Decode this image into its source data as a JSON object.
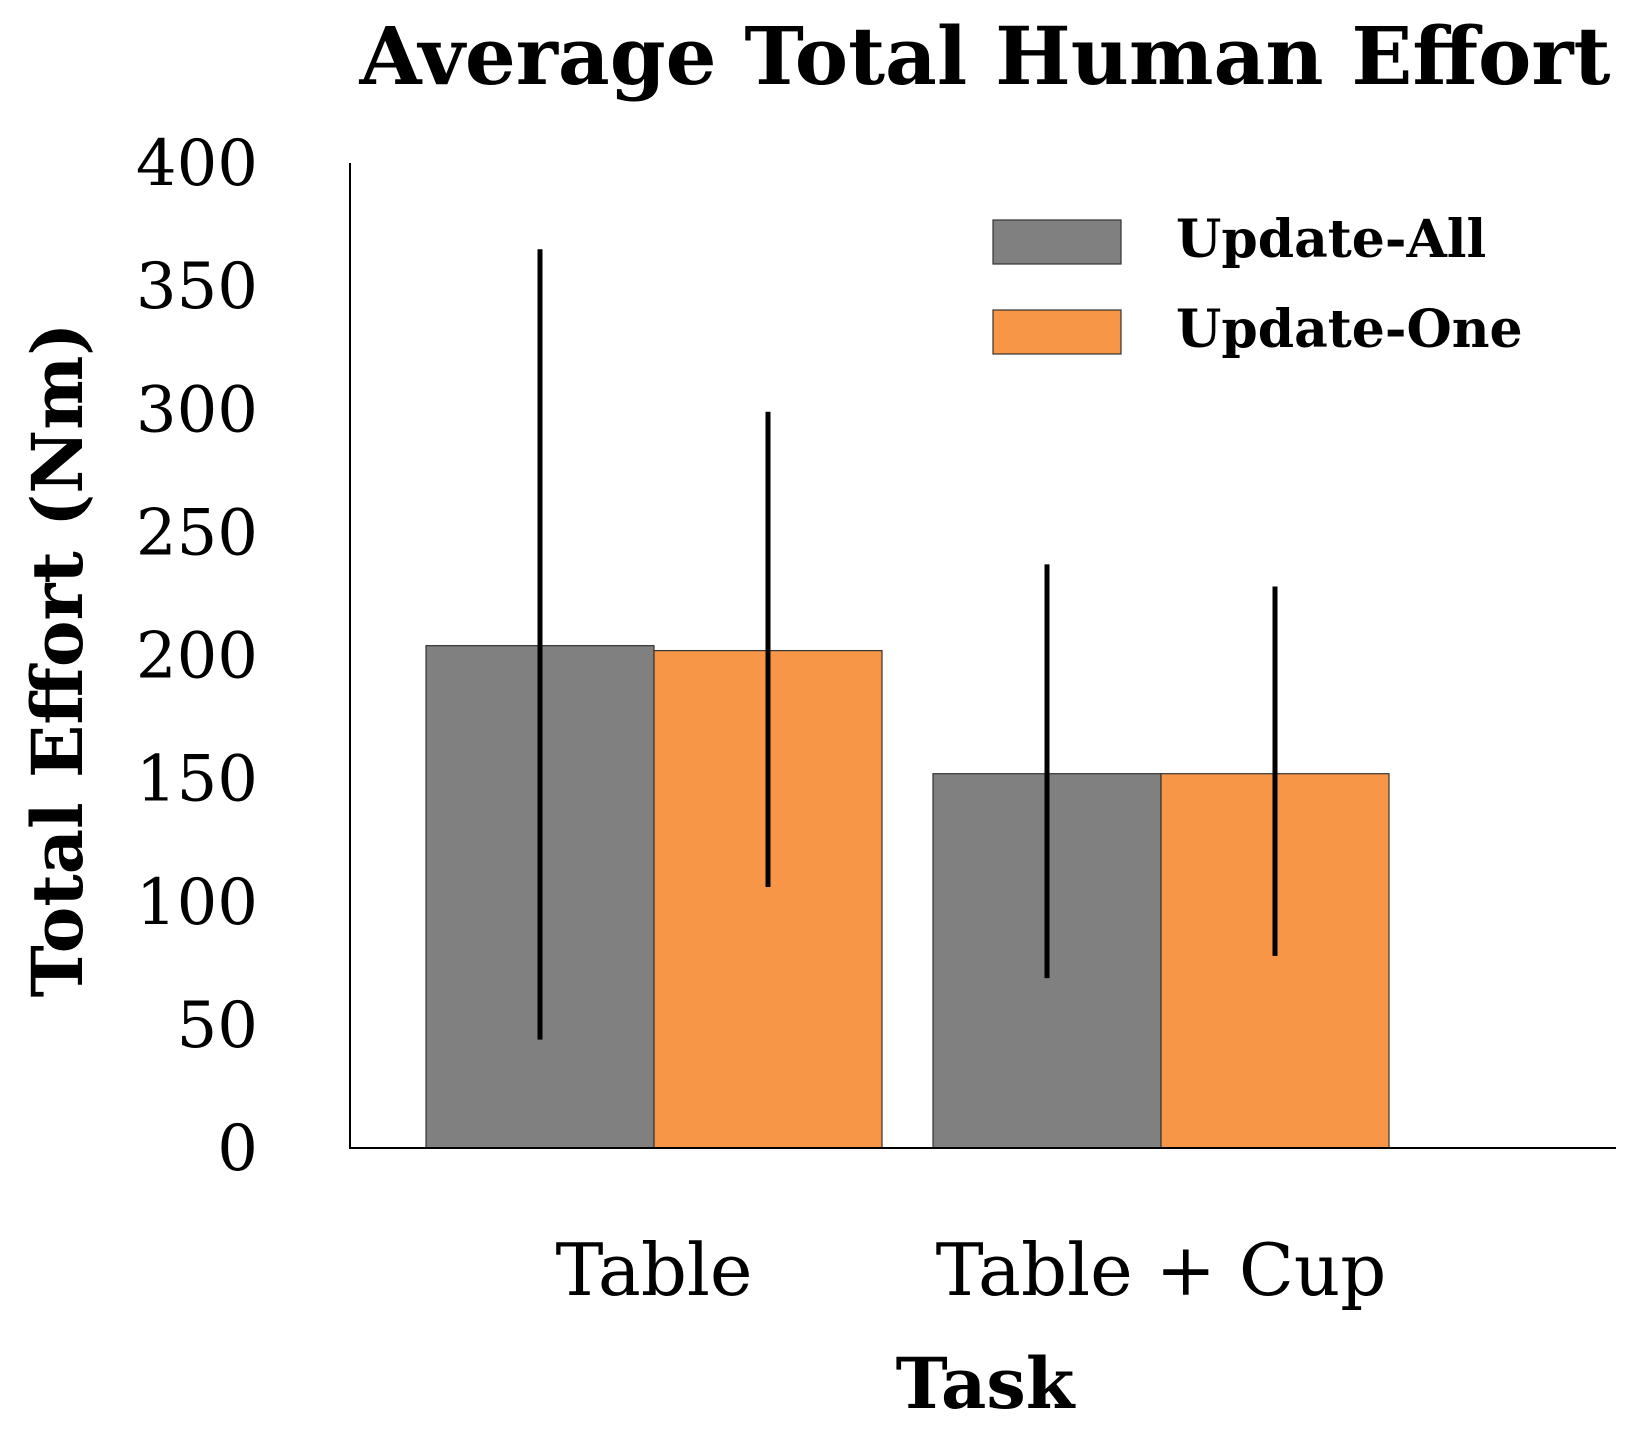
{
  "chart_data": {
    "type": "bar",
    "title": "Average Total Human Effort",
    "xlabel": "Task",
    "ylabel": "Total Effort (Nm)",
    "categories": [
      "Table",
      "Table + Cup"
    ],
    "series": [
      {
        "name": "Update-All",
        "color": "#808080",
        "values": [
          204,
          152
        ],
        "error_low": [
          44,
          69
        ],
        "error_high": [
          365,
          237
        ]
      },
      {
        "name": "Update-One",
        "color": "#F79646",
        "values": [
          202,
          152
        ],
        "error_low": [
          106,
          78
        ],
        "error_high": [
          299,
          228
        ]
      }
    ],
    "ylim": [
      0,
      400
    ],
    "yticks": [
      "0",
      "50",
      "100",
      "150",
      "200",
      "250",
      "300",
      "350",
      "400"
    ],
    "grid": false,
    "legend_position": "top-right"
  }
}
